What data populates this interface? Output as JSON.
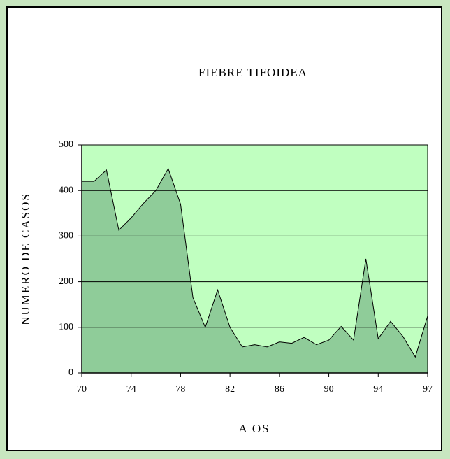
{
  "chart_data": {
    "type": "area",
    "title": "FIEBRE TIFOIDEA",
    "ylabel": "NUMERO DE CASOS",
    "xlabel": "A OS",
    "categories": [
      "70",
      null,
      null,
      null,
      "74",
      null,
      null,
      null,
      "78",
      null,
      null,
      null,
      "82",
      null,
      null,
      null,
      "86",
      null,
      null,
      null,
      "90",
      null,
      null,
      null,
      "94",
      null,
      null,
      null,
      "97"
    ],
    "values": [
      420,
      420,
      445,
      313,
      340,
      372,
      400,
      448,
      370,
      165,
      100,
      182,
      100,
      57,
      62,
      57,
      68,
      65,
      78,
      62,
      72,
      102,
      72,
      250,
      75,
      113,
      80,
      35,
      125
    ],
    "color": "#8fcc99",
    "ylim": [
      0,
      500
    ],
    "yticks": [
      0,
      100,
      200,
      300,
      400,
      500
    ],
    "grid": true
  }
}
